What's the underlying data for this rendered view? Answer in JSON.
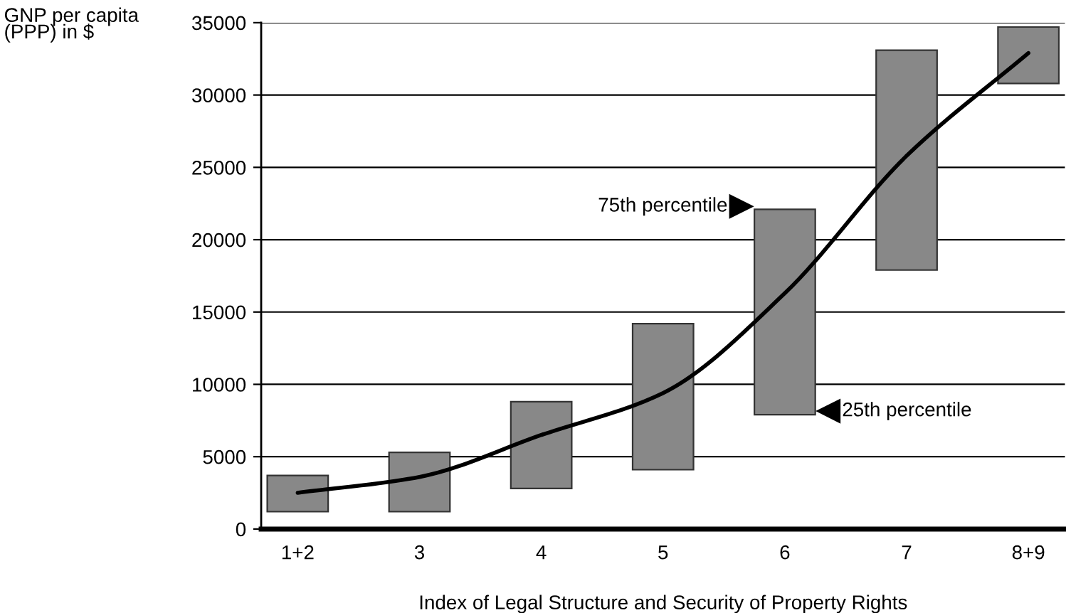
{
  "chart_data": {
    "type": "bar",
    "ylabel": "GNP per capita\n(PPP) in $",
    "xlabel": "Index of Legal Structure and Security of Property Rights",
    "categories": [
      "1+2",
      "3",
      "4",
      "5",
      "6",
      "7",
      "8+9"
    ],
    "series": [
      {
        "color": "#888888",
        "base": [
          1200,
          1200,
          2800,
          4100,
          7900,
          17900,
          30800
        ],
        "values": [
          2500,
          4100,
          6000,
          10100,
          14200,
          15200,
          3900
        ]
      },
      {
        "type": "line",
        "color": "#000000",
        "values": [
          2500,
          3600,
          6500,
          9400,
          16300,
          25800,
          32900
        ]
      }
    ],
    "ylim": [
      0,
      35000
    ],
    "yticks": [
      0,
      5000,
      10000,
      15000,
      20000,
      25000,
      30000,
      35000
    ],
    "grid": "y",
    "legend": false,
    "line_style": "solid",
    "marker": "none",
    "annotations": [
      {
        "text": "75th percentile",
        "x": "6",
        "y": 22100
      },
      {
        "text": "25th percentile",
        "x": "6",
        "y": 7850
      }
    ]
  }
}
